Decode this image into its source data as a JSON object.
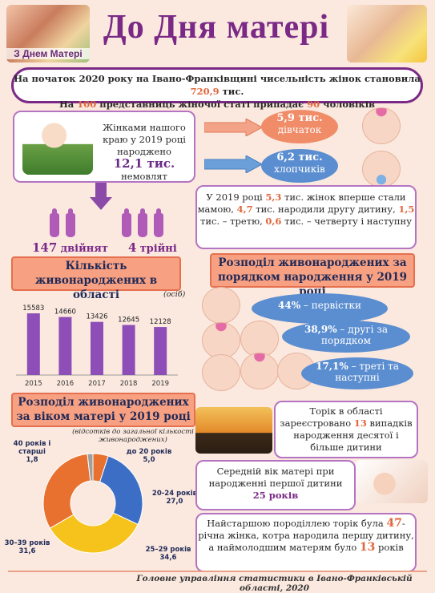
{
  "header": {
    "title": "До Дня матері",
    "badge": "З Днем Матері"
  },
  "intro": {
    "line1_pre": "На початок 2020 року на Івано-Франківщині чисельність жінок становила ",
    "line1_num": "720,9",
    "line1_post": " тис.",
    "line2_pre": "На ",
    "line2_num1": "100",
    "line2_mid": " представниць жіночої статі припадає ",
    "line2_num2": "90",
    "line2_post": " чоловіків"
  },
  "births": {
    "text1": "Жінками нашого краю у 2019 році народжено",
    "num": "12,1 тис.",
    "text2": "немовлят"
  },
  "girls": {
    "num": "5,9 тис.",
    "label": "дівчаток"
  },
  "boys": {
    "num": "6,2 тис.",
    "label": "хлопчиків"
  },
  "twins": {
    "num": "147",
    "label": "двійнят"
  },
  "triplets": {
    "num": "4",
    "label": "трійні"
  },
  "first_time": {
    "t1": "У 2019 році ",
    "n1": "5,3",
    "t2": " тис. жінок  вперше стали мамою, ",
    "n2": "4,7",
    "t3": " тис. народили другу дитину, ",
    "n3": "1,5",
    "t4": " тис. – третю, ",
    "n4": "0,6",
    "t5": " тис. –  четверту і наступну"
  },
  "order_title": "Розподіл живонароджених за порядком народження у 2019 році",
  "order": [
    {
      "num": "44%",
      "label": " – первістки"
    },
    {
      "num": "38,9%",
      "label": " – другі за порядком"
    },
    {
      "num": "17,1%",
      "label": " – треті та наступні"
    }
  ],
  "age_title": "Розподіл живонароджених за віком матері  у 2019 році",
  "age_note": "(відсотків до загальної кількості живонароджених)",
  "tenth_child": {
    "t1": "Торік в області зареєстровано ",
    "num": "13",
    "t2": " випадків народження десятої і більше дитини"
  },
  "avg_age": {
    "text": "Середній вік матері при народженні першої дитини",
    "num": "25 років"
  },
  "oldest": {
    "t1": "Найстаршою породіллею торік була ",
    "n1": "47",
    "t2": "-річна жінка, котра народила першу дитину, а наймолодшим матерям було ",
    "n2": "13",
    "t3": " років"
  },
  "footer": "Головне управління статистики в Івано-Франківській області, 2020",
  "chart_data": [
    {
      "type": "bar",
      "title": "Кількість живонароджених в області",
      "unit": "(осіб)",
      "categories": [
        "2015",
        "2016",
        "2017",
        "2018",
        "2019"
      ],
      "values": [
        15583,
        14660,
        13426,
        12645,
        12128
      ],
      "ylim": [
        0,
        17000
      ],
      "color": "#8d4fb7"
    },
    {
      "type": "pie",
      "title": "Розподіл живонароджених за віком матері  у 2019 році",
      "slices": [
        {
          "label": "до 20 років",
          "value": 5.0,
          "value_label": "5,0",
          "color": "#e9712f"
        },
        {
          "label": "20-24 років",
          "value": 27.0,
          "value_label": "27,0",
          "color": "#3d6ec6"
        },
        {
          "label": "25–29 років",
          "value": 34.6,
          "value_label": "34,6",
          "color": "#f6c21c"
        },
        {
          "label": "30–39 років",
          "value": 31.6,
          "value_label": "31,6",
          "color": "#e9712f"
        },
        {
          "label": "40 років і старші",
          "value": 1.8,
          "value_label": "1,8",
          "color": "#9e9e9e"
        }
      ]
    }
  ]
}
